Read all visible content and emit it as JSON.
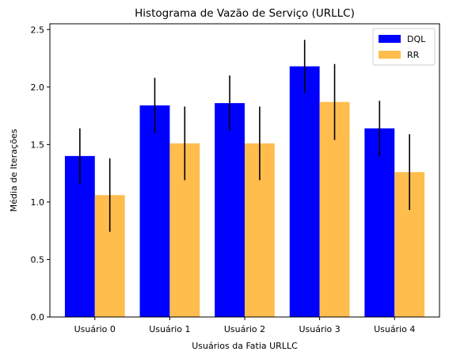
{
  "chart_data": {
    "type": "bar",
    "title": "Histograma de Vazão de Serviço (URLLC)",
    "xlabel": "Usuários da Fatia URLLC",
    "ylabel": "Média de Iterações",
    "categories": [
      "Usuário 0",
      "Usuário 1",
      "Usuário 2",
      "Usuário 3",
      "Usuário 4"
    ],
    "ylim": [
      0,
      2.55
    ],
    "yticks": [
      0.0,
      0.5,
      1.0,
      1.5,
      2.0,
      2.5
    ],
    "ytick_labels": [
      "0.0",
      "0.5",
      "1.0",
      "1.5",
      "2.0",
      "2.5"
    ],
    "grid": false,
    "legend_position": "top-right",
    "series": [
      {
        "name": "DQL",
        "color": "#0000ff",
        "values": [
          1.4,
          1.84,
          1.86,
          2.18,
          1.64
        ],
        "errors": [
          0.24,
          0.24,
          0.24,
          0.23,
          0.24
        ]
      },
      {
        "name": "RR",
        "color": "#ffbd4d",
        "values": [
          1.06,
          1.51,
          1.51,
          1.87,
          1.26
        ],
        "errors": [
          0.32,
          0.32,
          0.32,
          0.33,
          0.33
        ]
      }
    ]
  }
}
